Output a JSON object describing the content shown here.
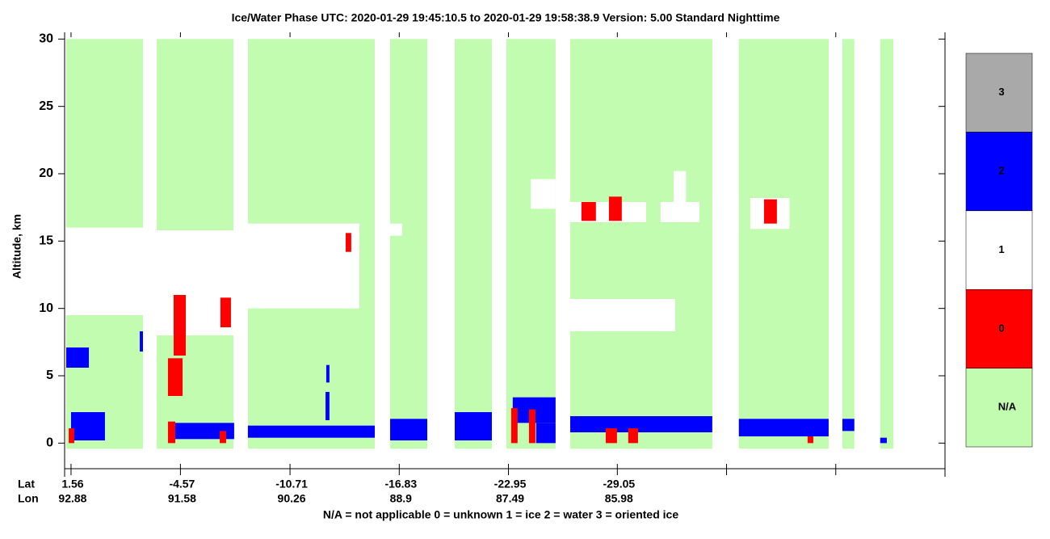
{
  "chart_data": {
    "type": "phase-curtain",
    "title": "Ice/Water Phase    UTC:  2020-01-29    19:45:10.5  to  2020-01-29    19:58:38.9    Version: 5.00  Standard Nighttime",
    "y_label": "Altitude, km",
    "footer": "N/A = not applicable     0 = unknown     1 = ice     2 = water     3 = oriented ice",
    "ylim": [
      -1.9,
      30.5
    ],
    "yticks": [
      0,
      5,
      10,
      15,
      20,
      25,
      30
    ],
    "xlim": [
      1.92,
      -47.41
    ],
    "xticks": [
      1.56,
      -4.57,
      -10.71,
      -16.83,
      -22.95,
      -29.05,
      -35.17,
      -41.29,
      -47.41
    ],
    "x_rows": [
      {
        "name": "Lat",
        "values": [
          1.56,
          -4.57,
          -10.71,
          -16.83,
          -22.95,
          -29.05,
          null,
          null,
          null
        ]
      },
      {
        "name": "Lon",
        "values": [
          92.88,
          91.58,
          90.26,
          88.9,
          87.49,
          85.98,
          null,
          null,
          null
        ]
      }
    ],
    "classes": [
      {
        "label": "N/A",
        "color": "#c2fcb0"
      },
      {
        "label": "0",
        "color": "#ff0000"
      },
      {
        "label": "1",
        "color": "#ffffff"
      },
      {
        "label": "2",
        "color": "#0000ff"
      },
      {
        "label": "3",
        "color": "#a9a9a9"
      }
    ],
    "column_alt": [
      -0.42,
      30
    ],
    "data_columns": [
      [
        1.83,
        -2.47
      ],
      [
        -3.24,
        -7.54
      ],
      [
        -8.35,
        -15.46
      ],
      [
        -16.32,
        -18.4
      ],
      [
        -19.94,
        -22.02
      ],
      [
        -22.83,
        -25.59
      ],
      [
        -26.41,
        -34.37
      ],
      [
        -35.86,
        -40.89
      ],
      [
        -41.66,
        -42.33
      ],
      [
        -43.78,
        -44.51
      ]
    ],
    "features": [
      {
        "phase": "1",
        "lat": [
          1.83,
          -2.47
        ],
        "alt": [
          9.5,
          16.0
        ]
      },
      {
        "phase": "1",
        "lat": [
          -3.24,
          -7.54
        ],
        "alt": [
          8.0,
          15.8
        ]
      },
      {
        "phase": "1",
        "lat": [
          -8.35,
          -14.6
        ],
        "alt": [
          10.0,
          16.3
        ]
      },
      {
        "phase": "1",
        "lat": [
          -16.32,
          -17.0
        ],
        "alt": [
          15.4,
          16.3
        ]
      },
      {
        "phase": "1",
        "lat": [
          -24.2,
          -25.59
        ],
        "alt": [
          17.4,
          19.6
        ]
      },
      {
        "phase": "1",
        "lat": [
          -26.41,
          -30.66
        ],
        "alt": [
          16.4,
          17.9
        ]
      },
      {
        "phase": "1",
        "lat": [
          -31.47,
          -33.65
        ],
        "alt": [
          16.4,
          17.9
        ]
      },
      {
        "phase": "1",
        "lat": [
          -32.2,
          -32.9
        ],
        "alt": [
          17.9,
          20.2
        ]
      },
      {
        "phase": "1",
        "lat": [
          -36.5,
          -38.7
        ],
        "alt": [
          15.9,
          18.2
        ]
      },
      {
        "phase": "1",
        "lat": [
          -26.41,
          -32.29
        ],
        "alt": [
          8.3,
          10.7
        ]
      },
      {
        "phase": "2",
        "lat": [
          1.83,
          0.56
        ],
        "alt": [
          5.6,
          7.1
        ]
      },
      {
        "phase": "2",
        "lat": [
          1.56,
          -0.34
        ],
        "alt": [
          0.2,
          2.3
        ]
      },
      {
        "phase": "2",
        "lat": [
          -2.29,
          -2.47
        ],
        "alt": [
          6.8,
          8.3
        ]
      },
      {
        "phase": "2",
        "lat": [
          -4.28,
          -7.58
        ],
        "alt": [
          0.3,
          1.5
        ]
      },
      {
        "phase": "2",
        "lat": [
          -8.35,
          -15.46
        ],
        "alt": [
          0.4,
          1.3
        ]
      },
      {
        "phase": "2",
        "lat": [
          -12.7,
          -12.92
        ],
        "alt": [
          1.7,
          3.8
        ]
      },
      {
        "phase": "2",
        "lat": [
          -12.74,
          -12.92
        ],
        "alt": [
          4.5,
          5.8
        ]
      },
      {
        "phase": "2",
        "lat": [
          -16.32,
          -18.4
        ],
        "alt": [
          0.2,
          1.8
        ]
      },
      {
        "phase": "2",
        "lat": [
          -19.94,
          -22.02
        ],
        "alt": [
          0.2,
          2.3
        ]
      },
      {
        "phase": "2",
        "lat": [
          -23.19,
          -25.59
        ],
        "alt": [
          1.5,
          3.4
        ]
      },
      {
        "phase": "2",
        "lat": [
          -24.5,
          -25.59
        ],
        "alt": [
          0.0,
          1.5
        ]
      },
      {
        "phase": "2",
        "lat": [
          -26.41,
          -34.37
        ],
        "alt": [
          0.8,
          2.0
        ]
      },
      {
        "phase": "2",
        "lat": [
          -35.86,
          -40.89
        ],
        "alt": [
          0.5,
          1.8
        ]
      },
      {
        "phase": "2",
        "lat": [
          -41.66,
          -42.33
        ],
        "alt": [
          0.9,
          1.8
        ]
      },
      {
        "phase": "2",
        "lat": [
          -43.78,
          -44.15
        ],
        "alt": [
          0.0,
          0.4
        ]
      },
      {
        "phase": "0",
        "lat": [
          -13.83,
          -14.14
        ],
        "alt": [
          14.2,
          15.6
        ]
      },
      {
        "phase": "0",
        "lat": [
          -3.87,
          -4.69
        ],
        "alt": [
          3.5,
          6.3
        ]
      },
      {
        "phase": "0",
        "lat": [
          -4.19,
          -4.87
        ],
        "alt": [
          6.5,
          11.0
        ]
      },
      {
        "phase": "0",
        "lat": [
          -6.81,
          -7.4
        ],
        "alt": [
          8.6,
          10.8
        ]
      },
      {
        "phase": "0",
        "lat": [
          -27.04,
          -27.85
        ],
        "alt": [
          16.5,
          17.9
        ]
      },
      {
        "phase": "0",
        "lat": [
          -28.58,
          -29.3
        ],
        "alt": [
          16.5,
          18.3
        ]
      },
      {
        "phase": "0",
        "lat": [
          -37.27,
          -37.99
        ],
        "alt": [
          16.3,
          18.1
        ]
      },
      {
        "phase": "0",
        "lat": [
          1.69,
          1.38
        ],
        "alt": [
          0.0,
          1.1
        ]
      },
      {
        "phase": "0",
        "lat": [
          -3.87,
          -4.28
        ],
        "alt": [
          0.0,
          1.6
        ]
      },
      {
        "phase": "0",
        "lat": [
          -6.77,
          -7.13
        ],
        "alt": [
          0.0,
          0.9
        ]
      },
      {
        "phase": "0",
        "lat": [
          -23.1,
          -23.46
        ],
        "alt": [
          0.0,
          2.6
        ]
      },
      {
        "phase": "0",
        "lat": [
          -24.1,
          -24.46
        ],
        "alt": [
          0.0,
          2.5
        ]
      },
      {
        "phase": "0",
        "lat": [
          -28.4,
          -29.03
        ],
        "alt": [
          0.0,
          1.1
        ]
      },
      {
        "phase": "0",
        "lat": [
          -29.66,
          -30.21
        ],
        "alt": [
          0.0,
          1.1
        ]
      },
      {
        "phase": "0",
        "lat": [
          -39.71,
          -40.03
        ],
        "alt": [
          0.0,
          0.5
        ]
      }
    ]
  }
}
